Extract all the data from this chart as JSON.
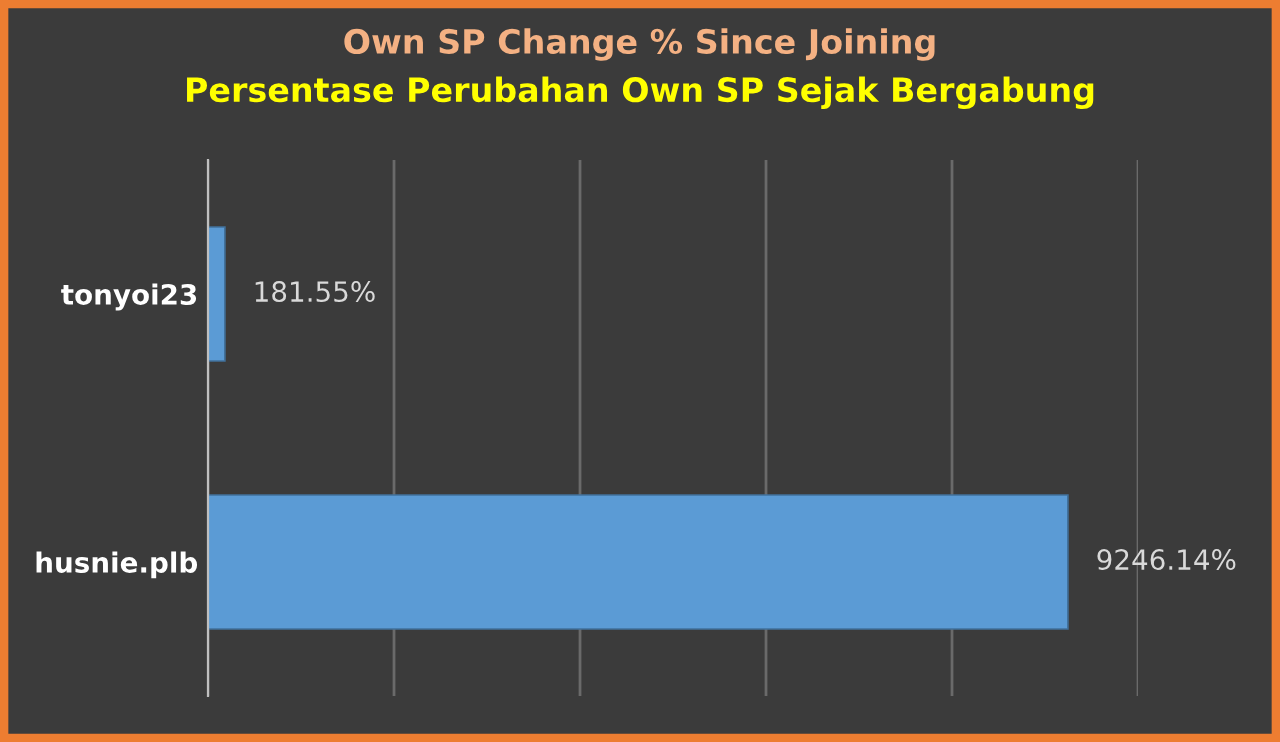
{
  "chart_data": {
    "type": "bar",
    "orientation": "horizontal",
    "title": "Own SP Change % Since Joining",
    "subtitle": "Persentase Perubahan Own SP Sejak Bergabung",
    "categories": [
      "tonyoi23",
      "husnie.plb"
    ],
    "values": [
      181.55,
      9246.14
    ],
    "value_labels": [
      "181.55%",
      "9246.14%"
    ],
    "color": "#5b9bd5",
    "xlim": [
      0,
      10000
    ],
    "xticks": [
      {
        "value": 0,
        "label": null
      },
      {
        "value": 2000,
        "label": null
      },
      {
        "value": 4000,
        "label": null
      },
      {
        "value": 6000,
        "label": null
      },
      {
        "value": 8000,
        "label": null
      },
      {
        "value": 10000,
        "label": null
      }
    ],
    "tick_labels": "y",
    "grid": "x",
    "legend": false
  }
}
